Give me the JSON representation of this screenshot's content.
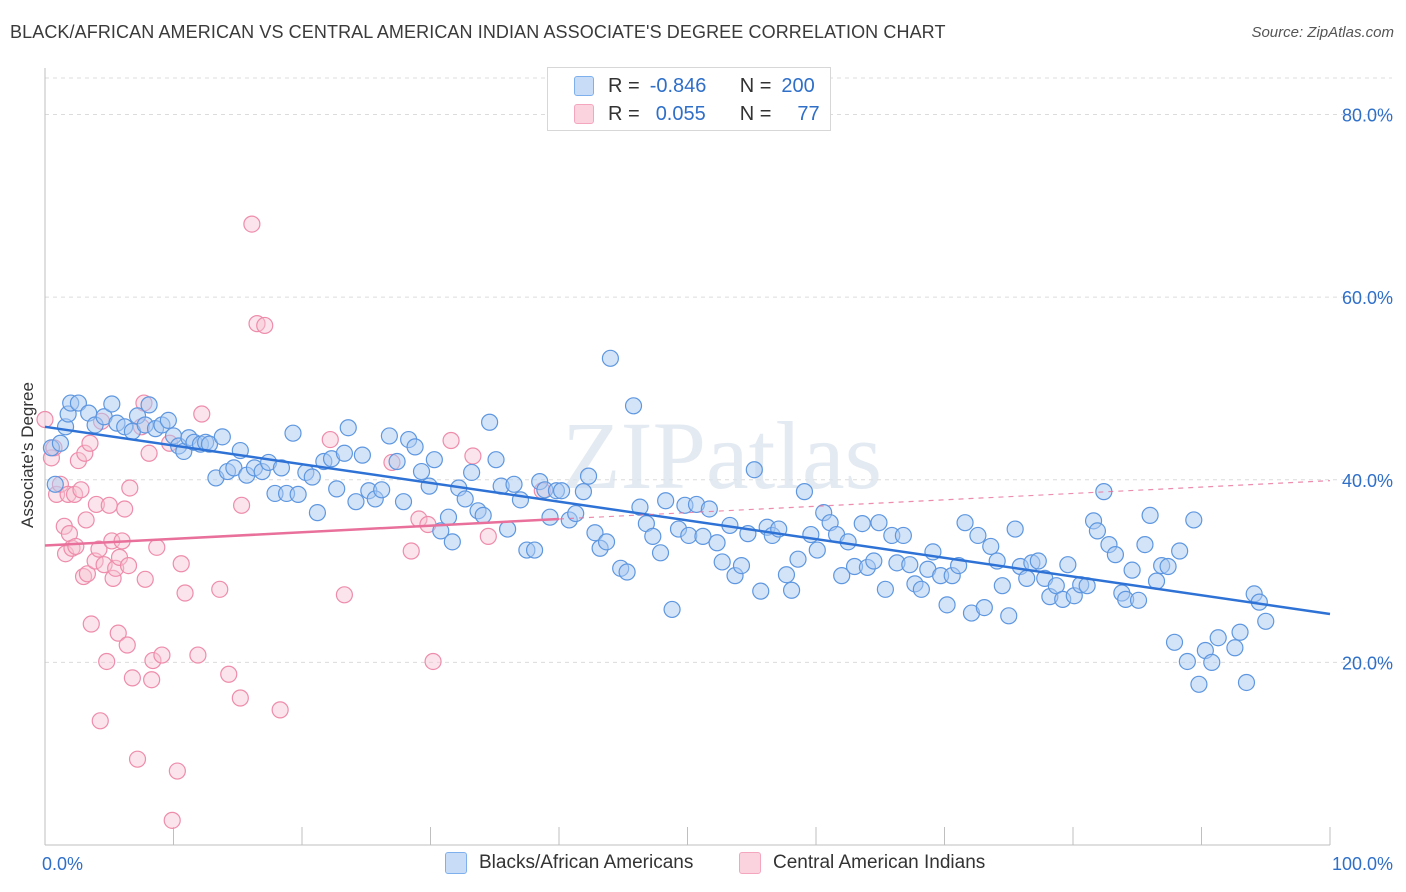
{
  "header": {
    "title": "BLACK/AFRICAN AMERICAN VS CENTRAL AMERICAN INDIAN ASSOCIATE'S DEGREE CORRELATION CHART",
    "source": "Source: ZipAtlas.com"
  },
  "watermark": "ZIPatlas",
  "legend": {
    "rows": [
      {
        "r_label": "R =",
        "r_value": "-0.846",
        "n_label": "N =",
        "n_value": "200",
        "color": "#7fb0ee"
      },
      {
        "r_label": "R =",
        "r_value": "0.055",
        "n_label": "N =",
        "n_value": "77",
        "color": "#f4a6bf"
      }
    ]
  },
  "bottom_legend": [
    {
      "label": "Blacks/African Americans",
      "color": "#7fb0ee"
    },
    {
      "label": "Central American Indians",
      "color": "#f4a6bf"
    }
  ],
  "colors": {
    "blue_fill": "#aac9f2",
    "blue_stroke": "#5e97e0",
    "blue_line": "#2f72d6",
    "pink_fill": "#f7c3d3",
    "pink_stroke": "#ee8cab",
    "pink_line": "#e8709a",
    "axis_text": "#2f6fc8",
    "grid": "#dcdcdc"
  },
  "chart_data": {
    "type": "scatter",
    "title": "BLACK/AFRICAN AMERICAN VS CENTRAL AMERICAN INDIAN ASSOCIATE'S DEGREE CORRELATION CHART",
    "xlabel": "",
    "ylabel": "Associate's Degree",
    "xlim": [
      0,
      100
    ],
    "ylim": [
      0,
      84
    ],
    "x_tick_labels": [
      "0.0%",
      "100.0%"
    ],
    "y_ticks": [
      20,
      40,
      60,
      80
    ],
    "y_tick_labels": [
      "20.0%",
      "40.0%",
      "60.0%",
      "80.0%"
    ],
    "grid": true,
    "legend_position": "top-center",
    "series": [
      {
        "name": "Blacks/African Americans",
        "r": -0.846,
        "n": 200,
        "trend": {
          "x": [
            0,
            100
          ],
          "y": [
            45.8,
            25.3
          ]
        },
        "points": [
          [
            0.5,
            43.5
          ],
          [
            0.8,
            39.5
          ],
          [
            1.2,
            44
          ],
          [
            1.6,
            45.8
          ],
          [
            1.8,
            47.2
          ],
          [
            2,
            48.4
          ],
          [
            2.6,
            48.4
          ],
          [
            3.4,
            47.3
          ],
          [
            3.9,
            46
          ],
          [
            4.6,
            46.9
          ],
          [
            5.2,
            48.3
          ],
          [
            5.6,
            46.2
          ],
          [
            6.2,
            45.8
          ],
          [
            6.8,
            45.3
          ],
          [
            7.2,
            47
          ],
          [
            7.8,
            46
          ],
          [
            8.1,
            48.2
          ],
          [
            8.6,
            45.6
          ],
          [
            9.1,
            46
          ],
          [
            9.6,
            46.5
          ],
          [
            10,
            44.8
          ],
          [
            10.4,
            43.7
          ],
          [
            10.8,
            43.1
          ],
          [
            11.2,
            44.6
          ],
          [
            11.6,
            44.1
          ],
          [
            12.1,
            43.9
          ],
          [
            12.5,
            44.1
          ],
          [
            12.8,
            43.9
          ],
          [
            13.3,
            40.2
          ],
          [
            13.8,
            44.7
          ],
          [
            14.2,
            40.9
          ],
          [
            14.7,
            41.3
          ],
          [
            15.2,
            43.2
          ],
          [
            15.7,
            40.5
          ],
          [
            16.3,
            41.3
          ],
          [
            16.9,
            40.9
          ],
          [
            17.4,
            41.9
          ],
          [
            17.9,
            38.5
          ],
          [
            18.4,
            41.3
          ],
          [
            18.8,
            38.5
          ],
          [
            19.3,
            45.1
          ],
          [
            19.7,
            38.4
          ],
          [
            20.3,
            40.8
          ],
          [
            20.8,
            40.3
          ],
          [
            21.2,
            36.4
          ],
          [
            21.7,
            42
          ],
          [
            22.3,
            42.3
          ],
          [
            22.7,
            39
          ],
          [
            23.3,
            42.9
          ],
          [
            23.6,
            45.7
          ],
          [
            24.2,
            37.6
          ],
          [
            24.7,
            42.7
          ],
          [
            25.2,
            38.8
          ],
          [
            25.7,
            37.9
          ],
          [
            26.2,
            38.9
          ],
          [
            26.8,
            44.8
          ],
          [
            27.4,
            42
          ],
          [
            27.9,
            37.6
          ],
          [
            28.3,
            44.4
          ],
          [
            28.8,
            43.6
          ],
          [
            29.3,
            40.9
          ],
          [
            29.9,
            39.3
          ],
          [
            30.3,
            42.2
          ],
          [
            30.8,
            34.4
          ],
          [
            31.4,
            35.9
          ],
          [
            31.7,
            33.2
          ],
          [
            32.2,
            39.1
          ],
          [
            32.7,
            37.9
          ],
          [
            33.2,
            40.8
          ],
          [
            33.7,
            36.6
          ],
          [
            34.1,
            36.1
          ],
          [
            34.6,
            46.3
          ],
          [
            35.1,
            42.2
          ],
          [
            35.5,
            39.3
          ],
          [
            36,
            34.6
          ],
          [
            36.5,
            39.5
          ],
          [
            37,
            37.8
          ],
          [
            37.5,
            32.3
          ],
          [
            38.1,
            32.3
          ],
          [
            38.5,
            39.8
          ],
          [
            38.9,
            38.9
          ],
          [
            39.3,
            35.9
          ],
          [
            39.8,
            38.8
          ],
          [
            40.2,
            38.8
          ],
          [
            40.8,
            35.6
          ],
          [
            41.3,
            36.3
          ],
          [
            41.9,
            38.7
          ],
          [
            42.3,
            40.4
          ],
          [
            42.8,
            34.2
          ],
          [
            43.2,
            32.5
          ],
          [
            43.7,
            33.2
          ],
          [
            44,
            53.3
          ],
          [
            44.8,
            30.3
          ],
          [
            45.3,
            29.9
          ],
          [
            45.8,
            48.1
          ],
          [
            46.3,
            37
          ],
          [
            46.8,
            35.2
          ],
          [
            47.3,
            33.8
          ],
          [
            47.9,
            32
          ],
          [
            48.3,
            37.7
          ],
          [
            48.8,
            25.8
          ],
          [
            49.3,
            34.6
          ],
          [
            49.8,
            37.2
          ],
          [
            50.1,
            33.9
          ],
          [
            50.7,
            37.3
          ],
          [
            51.2,
            33.8
          ],
          [
            51.7,
            36.8
          ],
          [
            52.3,
            33.1
          ],
          [
            52.7,
            31
          ],
          [
            53.3,
            35
          ],
          [
            53.7,
            29.5
          ],
          [
            54.2,
            30.6
          ],
          [
            54.7,
            34.1
          ],
          [
            55.2,
            41.1
          ],
          [
            55.7,
            27.8
          ],
          [
            56.2,
            34.8
          ],
          [
            56.6,
            33.9
          ],
          [
            57.1,
            34.6
          ],
          [
            57.7,
            29.6
          ],
          [
            58.1,
            27.9
          ],
          [
            58.6,
            31.3
          ],
          [
            59.1,
            38.7
          ],
          [
            59.6,
            34
          ],
          [
            60.1,
            32.3
          ],
          [
            60.6,
            36.4
          ],
          [
            61.1,
            35.3
          ],
          [
            61.6,
            34
          ],
          [
            62,
            29.5
          ],
          [
            62.5,
            33.2
          ],
          [
            63,
            30.5
          ],
          [
            63.6,
            35.2
          ],
          [
            64,
            30.4
          ],
          [
            64.5,
            31.1
          ],
          [
            64.9,
            35.3
          ],
          [
            65.4,
            28
          ],
          [
            65.9,
            33.9
          ],
          [
            66.3,
            30.9
          ],
          [
            66.8,
            33.9
          ],
          [
            67.3,
            30.7
          ],
          [
            67.7,
            28.6
          ],
          [
            68.2,
            28
          ],
          [
            68.7,
            30.2
          ],
          [
            69.1,
            32.1
          ],
          [
            69.7,
            29.5
          ],
          [
            70.2,
            26.3
          ],
          [
            70.6,
            29.5
          ],
          [
            71.1,
            30.6
          ],
          [
            71.6,
            35.3
          ],
          [
            72.1,
            25.4
          ],
          [
            72.6,
            33.9
          ],
          [
            73.1,
            26
          ],
          [
            73.6,
            32.7
          ],
          [
            74.1,
            31.1
          ],
          [
            74.5,
            28.4
          ],
          [
            75,
            25.1
          ],
          [
            75.5,
            34.6
          ],
          [
            75.9,
            30.5
          ],
          [
            76.4,
            29.2
          ],
          [
            76.8,
            30.9
          ],
          [
            77.3,
            31.1
          ],
          [
            77.8,
            29.2
          ],
          [
            78.2,
            27.2
          ],
          [
            78.7,
            28.4
          ],
          [
            79.2,
            26.9
          ],
          [
            79.6,
            30.7
          ],
          [
            80.1,
            27.3
          ],
          [
            80.6,
            28.5
          ],
          [
            81.1,
            28.4
          ],
          [
            81.6,
            35.5
          ],
          [
            81.9,
            34.4
          ],
          [
            82.4,
            38.7
          ],
          [
            82.8,
            32.9
          ],
          [
            83.3,
            31.8
          ],
          [
            83.8,
            27.6
          ],
          [
            84.1,
            26.9
          ],
          [
            84.6,
            30.1
          ],
          [
            85.1,
            26.8
          ],
          [
            85.6,
            32.9
          ],
          [
            86,
            36.1
          ],
          [
            86.5,
            28.9
          ],
          [
            86.9,
            30.6
          ],
          [
            87.4,
            30.5
          ],
          [
            87.9,
            22.2
          ],
          [
            88.3,
            32.2
          ],
          [
            88.9,
            20.1
          ],
          [
            89.4,
            35.6
          ],
          [
            89.8,
            17.6
          ],
          [
            90.3,
            21.3
          ],
          [
            90.8,
            20
          ],
          [
            91.3,
            22.7
          ],
          [
            92.6,
            21.6
          ],
          [
            93,
            23.3
          ],
          [
            93.5,
            17.8
          ],
          [
            94.1,
            27.5
          ],
          [
            94.5,
            26.6
          ],
          [
            95,
            24.5
          ]
        ]
      },
      {
        "name": "Central American Indians",
        "r": 0.055,
        "n": 77,
        "trend": {
          "x": [
            0,
            40
          ],
          "y": [
            32.8,
            35.7
          ],
          "ext_x": [
            40,
            100
          ],
          "ext_y": [
            35.7,
            39.9
          ]
        },
        "points": [
          [
            0,
            46.6
          ],
          [
            0.5,
            42.4
          ],
          [
            0.7,
            43.5
          ],
          [
            0.9,
            38.4
          ],
          [
            1.2,
            39.5
          ],
          [
            1.5,
            34.9
          ],
          [
            1.6,
            31.9
          ],
          [
            1.8,
            38.4
          ],
          [
            1.9,
            34.1
          ],
          [
            2.1,
            32.5
          ],
          [
            2.3,
            38.4
          ],
          [
            2.4,
            32.7
          ],
          [
            2.6,
            42.1
          ],
          [
            2.8,
            38.9
          ],
          [
            3,
            29.4
          ],
          [
            3.1,
            42.9
          ],
          [
            3.2,
            35.6
          ],
          [
            3.3,
            29.7
          ],
          [
            3.5,
            44
          ],
          [
            3.6,
            24.2
          ],
          [
            3.9,
            31.1
          ],
          [
            4,
            37.3
          ],
          [
            4.2,
            32.4
          ],
          [
            4.3,
            13.6
          ],
          [
            4.4,
            46.4
          ],
          [
            4.6,
            30.7
          ],
          [
            4.8,
            20.1
          ],
          [
            5,
            37.2
          ],
          [
            5.2,
            33.3
          ],
          [
            5.3,
            29.2
          ],
          [
            5.5,
            30.3
          ],
          [
            5.7,
            23.2
          ],
          [
            5.8,
            31.5
          ],
          [
            6,
            33.3
          ],
          [
            6.2,
            36.8
          ],
          [
            6.4,
            21.9
          ],
          [
            6.5,
            30.6
          ],
          [
            6.6,
            39.1
          ],
          [
            6.8,
            18.3
          ],
          [
            7.2,
            9.4
          ],
          [
            7.5,
            45.8
          ],
          [
            7.7,
            48.4
          ],
          [
            7.8,
            29.1
          ],
          [
            8.1,
            42.9
          ],
          [
            8.3,
            18.1
          ],
          [
            8.4,
            20.2
          ],
          [
            8.7,
            32.6
          ],
          [
            9.1,
            20.8
          ],
          [
            9.7,
            44
          ],
          [
            9.9,
            2.7
          ],
          [
            10.3,
            8.1
          ],
          [
            10.6,
            30.8
          ],
          [
            10.9,
            27.6
          ],
          [
            11.9,
            20.8
          ],
          [
            12.2,
            47.2
          ],
          [
            13.6,
            28
          ],
          [
            14.3,
            18.7
          ],
          [
            15.2,
            16.1
          ],
          [
            15.3,
            37.2
          ],
          [
            16.1,
            68
          ],
          [
            16.5,
            57.1
          ],
          [
            17.1,
            56.9
          ],
          [
            18.3,
            14.8
          ],
          [
            22.2,
            44.4
          ],
          [
            23.3,
            27.4
          ],
          [
            27,
            41.9
          ],
          [
            28.5,
            32.2
          ],
          [
            29.1,
            35.7
          ],
          [
            29.8,
            35.1
          ],
          [
            30.2,
            20.1
          ],
          [
            31.6,
            44.3
          ],
          [
            33.3,
            42.6
          ],
          [
            34.5,
            33.8
          ],
          [
            38.7,
            38.8
          ]
        ]
      }
    ]
  }
}
